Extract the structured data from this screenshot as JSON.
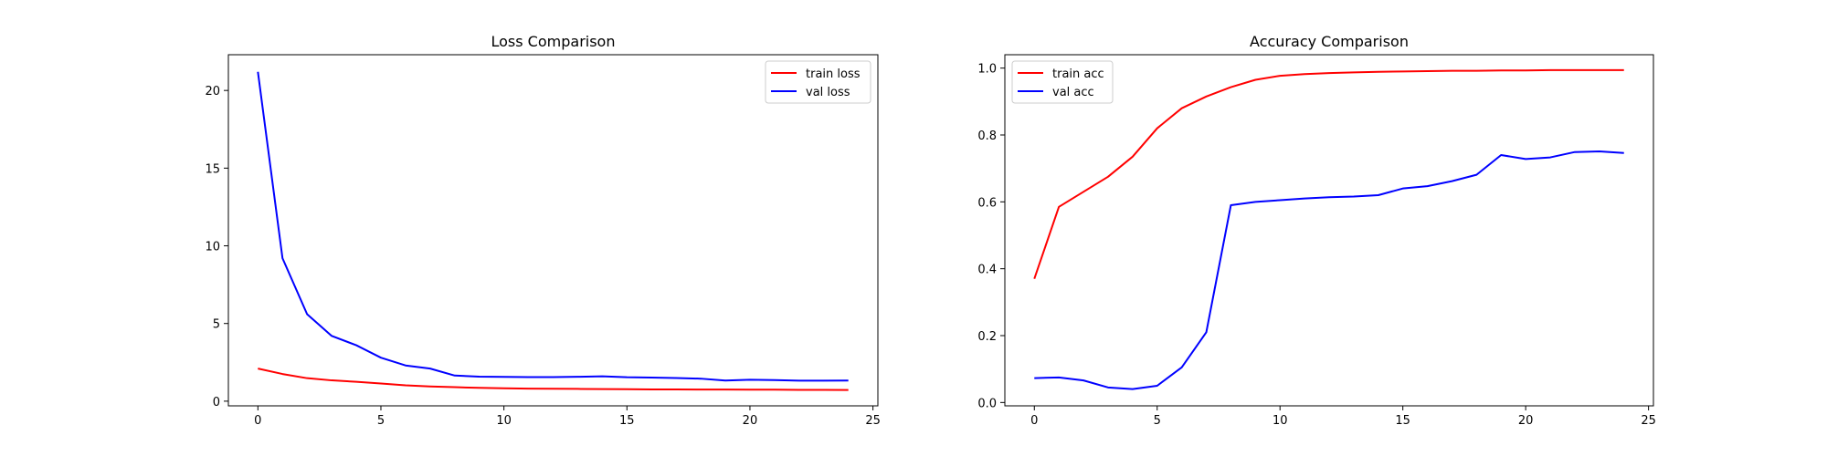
{
  "chart_data": [
    {
      "type": "line",
      "title": "Loss Comparison",
      "xlabel": "",
      "ylabel": "",
      "xlim": [
        -1.2,
        25.2
      ],
      "ylim": [
        -0.3,
        22.3
      ],
      "xticks": [
        0,
        5,
        10,
        15,
        20,
        25
      ],
      "yticks": [
        0,
        5,
        10,
        15,
        20
      ],
      "grid": false,
      "legend_position": "top-right",
      "x": [
        0,
        1,
        2,
        3,
        4,
        5,
        6,
        7,
        8,
        9,
        10,
        11,
        12,
        13,
        14,
        15,
        16,
        17,
        18,
        19,
        20,
        21,
        22,
        23,
        24
      ],
      "series": [
        {
          "name": "train loss",
          "color": "#ff0000",
          "values": [
            2.1,
            1.75,
            1.48,
            1.34,
            1.25,
            1.14,
            1.02,
            0.95,
            0.9,
            0.86,
            0.83,
            0.81,
            0.8,
            0.79,
            0.78,
            0.77,
            0.76,
            0.76,
            0.75,
            0.75,
            0.74,
            0.74,
            0.73,
            0.73,
            0.72
          ]
        },
        {
          "name": "val loss",
          "color": "#0000ff",
          "values": [
            21.2,
            9.2,
            5.6,
            4.2,
            3.6,
            2.8,
            2.3,
            2.1,
            1.65,
            1.58,
            1.56,
            1.55,
            1.55,
            1.57,
            1.6,
            1.54,
            1.52,
            1.49,
            1.45,
            1.33,
            1.38,
            1.36,
            1.32,
            1.32,
            1.33
          ]
        }
      ]
    },
    {
      "type": "line",
      "title": "Accuracy Comparison",
      "xlabel": "",
      "ylabel": "",
      "xlim": [
        -1.2,
        25.2
      ],
      "ylim": [
        -0.01,
        1.04
      ],
      "xticks": [
        0,
        5,
        10,
        15,
        20,
        25
      ],
      "yticks": [
        0.0,
        0.2,
        0.4,
        0.6,
        0.8,
        1.0
      ],
      "ytick_labels": [
        "0.0",
        "0.2",
        "0.4",
        "0.6",
        "0.8",
        "1.0"
      ],
      "grid": false,
      "legend_position": "top-left",
      "x": [
        0,
        1,
        2,
        3,
        4,
        5,
        6,
        7,
        8,
        9,
        10,
        11,
        12,
        13,
        14,
        15,
        16,
        17,
        18,
        19,
        20,
        21,
        22,
        23,
        24
      ],
      "series": [
        {
          "name": "train acc",
          "color": "#ff0000",
          "values": [
            0.37,
            0.585,
            0.63,
            0.675,
            0.735,
            0.82,
            0.88,
            0.915,
            0.943,
            0.965,
            0.977,
            0.982,
            0.985,
            0.987,
            0.989,
            0.99,
            0.991,
            0.992,
            0.992,
            0.993,
            0.993,
            0.994,
            0.994,
            0.994,
            0.994
          ]
        },
        {
          "name": "val acc",
          "color": "#0000ff",
          "values": [
            0.073,
            0.075,
            0.066,
            0.045,
            0.04,
            0.05,
            0.105,
            0.21,
            0.59,
            0.6,
            0.605,
            0.61,
            0.614,
            0.616,
            0.62,
            0.64,
            0.647,
            0.662,
            0.681,
            0.74,
            0.728,
            0.733,
            0.749,
            0.751,
            0.746
          ]
        }
      ]
    }
  ]
}
